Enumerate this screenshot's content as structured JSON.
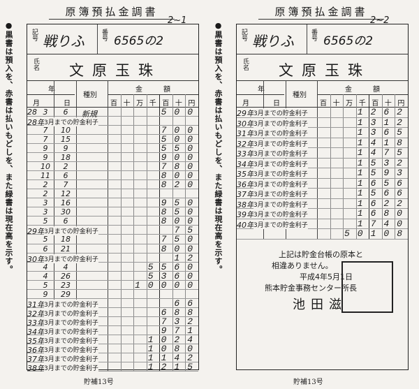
{
  "cards": [
    {
      "title": "原簿預払金調書",
      "page_mark": "2~1",
      "side_note": "●黒書は預入を、赤書は払いもどしを、また緑書は現在高を示す。",
      "kigo_label": "記号",
      "kigo": "戦りふ",
      "bango_label": "番号",
      "bango": "6565の2",
      "name_label": "氏名",
      "name": "文原玉珠",
      "headers": {
        "year": "年",
        "month": "月",
        "day": "日",
        "kind": "種別",
        "amount": "金額",
        "digits": [
          "百",
          "十",
          "万",
          "千",
          "百",
          "十",
          "円"
        ]
      },
      "rows": [
        {
          "year": "28",
          "month": "3",
          "day": "6",
          "kind": "新規",
          "amount": "500"
        },
        {
          "year": "28年",
          "kind": "3月までの貯金利子"
        },
        {
          "month": "7",
          "day": "10",
          "amount": "700"
        },
        {
          "month": "7",
          "day": "15",
          "amount": "500"
        },
        {
          "month": "9",
          "day": "9",
          "amount": "550"
        },
        {
          "month": "9",
          "day": "18",
          "amount": "900"
        },
        {
          "month": "10",
          "day": "2",
          "amount": "780"
        },
        {
          "month": "11",
          "day": "6",
          "amount": "800"
        },
        {
          "month": "2",
          "day": "7",
          "amount": "820"
        },
        {
          "month": "2",
          "day": "12"
        },
        {
          "month": "3",
          "day": "16",
          "amount": "950"
        },
        {
          "month": "3",
          "day": "30",
          "amount": "850"
        },
        {
          "month": "5",
          "day": "6",
          "amount": "800"
        },
        {
          "year": "29年",
          "kind": "3月までの貯金利子",
          "amount": "75"
        },
        {
          "month": "5",
          "day": "18",
          "amount": "750"
        },
        {
          "month": "6",
          "day": "21",
          "amount": "800"
        },
        {
          "year": "30年",
          "kind": "3月までの貯金利子",
          "amount": "12"
        },
        {
          "month": "4",
          "day": "4",
          "amount": "5560"
        },
        {
          "month": "4",
          "day": "26",
          "amount": "5360"
        },
        {
          "month": "5",
          "day": "23",
          "amount": "10000"
        },
        {
          "month": "9",
          "day": "29"
        },
        {
          "year": "31年",
          "kind": "3月までの貯金利子",
          "amount": "66"
        },
        {
          "year": "32年",
          "kind": "3月までの貯金利子",
          "amount": "688"
        },
        {
          "year": "33年",
          "kind": "3月までの貯金利子",
          "amount": "732"
        },
        {
          "year": "34年",
          "kind": "3月までの貯金利子",
          "amount": "971"
        },
        {
          "year": "35年",
          "kind": "3月までの貯金利子",
          "amount": "1024"
        },
        {
          "year": "36年",
          "kind": "3月までの貯金利子",
          "amount": "1080"
        },
        {
          "year": "37年",
          "kind": "3月までの貯金利子",
          "amount": "1142"
        },
        {
          "year": "38年",
          "kind": "3月までの貯金利子",
          "amount": "1215"
        }
      ],
      "footer": "貯補13号"
    },
    {
      "title": "原簿預払金調書",
      "page_mark": "2~2",
      "side_note": "●黒書は預入を、赤書は払いもどしを、また緑書は現在高を示す。",
      "kigo_label": "記号",
      "kigo": "戦りふ",
      "bango_label": "番号",
      "bango": "6565の2",
      "name_label": "氏名",
      "name": "文原玉珠",
      "headers": {
        "year": "年",
        "month": "月",
        "day": "日",
        "kind": "種別",
        "amount": "金額",
        "digits": [
          "百",
          "十",
          "万",
          "千",
          "百",
          "十",
          "円"
        ]
      },
      "rows": [
        {
          "year": "29年",
          "kind": "3月までの貯金利子",
          "amount": "1262"
        },
        {
          "year": "30年",
          "kind": "3月までの貯金利子",
          "amount": "1312"
        },
        {
          "year": "31年",
          "kind": "3月までの貯金利子",
          "amount": "1365"
        },
        {
          "year": "32年",
          "kind": "3月までの貯金利子",
          "amount": "1418"
        },
        {
          "year": "33年",
          "kind": "3月までの貯金利子",
          "amount": "1475"
        },
        {
          "year": "34年",
          "kind": "3月までの貯金利子",
          "amount": "1532"
        },
        {
          "year": "35年",
          "kind": "3月までの貯金利子",
          "amount": "1593"
        },
        {
          "year": "36年",
          "kind": "3月までの貯金利子",
          "amount": "1656"
        },
        {
          "year": "37年",
          "kind": "3月までの貯金利子",
          "amount": "1566"
        },
        {
          "year": "38年",
          "kind": "3月までの貯金利子",
          "amount": "1622"
        },
        {
          "year": "39年",
          "kind": "3月までの貯金利子",
          "amount": "1680"
        },
        {
          "year": "40年",
          "kind": "3月までの貯金利子",
          "amount": "1740"
        },
        {
          "amount": "50108"
        }
      ],
      "certification": [
        "上記は貯金台帳の原本と",
        "相違ありません。",
        "平成4年5月1日",
        "熊本貯金事務センター所長",
        "池田滋"
      ],
      "footer": "貯補13号"
    }
  ]
}
